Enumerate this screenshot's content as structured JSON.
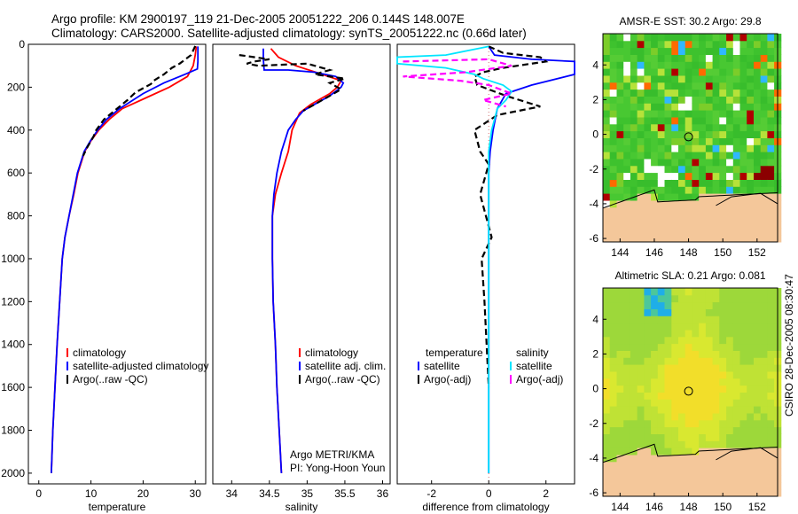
{
  "header": {
    "line1": "Argo profile: KM 2900197_119 21-Dec-2005 20051222_206 0.144S 148.007E",
    "line2": "Climatology: CARS2000. Satellite-adjusted climatology: synTS_20051222.nc (0.66d later)"
  },
  "stamp": "CSIRO 28-Dec-2005 08:30:47",
  "colors": {
    "climatology": "#ff0000",
    "satellite": "#0000ff",
    "argo": "#000000",
    "salinity_satellite": "#00e5ff",
    "salinity_argo": "#ff00ff"
  },
  "chart_data": [
    {
      "type": "line",
      "panel": "temperature",
      "xlabel": "temperature",
      "ylabel": "",
      "xlim": [
        -2,
        32
      ],
      "ylim": [
        2050,
        0
      ],
      "xticks": [
        "0",
        "10",
        "20",
        "30"
      ],
      "xtick_values": [
        0,
        10,
        20,
        30
      ],
      "yticks": [
        "0",
        "200",
        "400",
        "600",
        "800",
        "1000",
        "1200",
        "1400",
        "1600",
        "1800",
        "2000"
      ],
      "ytick_values": [
        0,
        200,
        400,
        600,
        800,
        1000,
        1200,
        1400,
        1600,
        1800,
        2000
      ],
      "legend": [
        "climatology",
        "satellite-adjusted climatology",
        "Argo(..raw -QC)"
      ],
      "series": [
        {
          "name": "climatology",
          "color": "red",
          "dash": false,
          "points": [
            [
              30.2,
              10
            ],
            [
              30.0,
              50
            ],
            [
              29.6,
              100
            ],
            [
              28.5,
              150
            ],
            [
              25,
              200
            ],
            [
              20.5,
              250
            ],
            [
              16,
              300
            ],
            [
              13.5,
              350
            ],
            [
              11.5,
              400
            ],
            [
              10,
              450
            ],
            [
              8.8,
              500
            ],
            [
              7.5,
              600
            ],
            [
              6.7,
              700
            ],
            [
              5.8,
              800
            ],
            [
              5.0,
              900
            ],
            [
              4.5,
              1000
            ],
            [
              4.0,
              1200
            ],
            [
              3.5,
              1400
            ],
            [
              3.1,
              1600
            ],
            [
              2.7,
              1800
            ],
            [
              2.4,
              2000
            ]
          ]
        },
        {
          "name": "satellite-adjusted climatology",
          "color": "blue",
          "dash": false,
          "points": [
            [
              30.5,
              10
            ],
            [
              30.5,
              50
            ],
            [
              30.5,
              80
            ],
            [
              30.4,
              115
            ],
            [
              28,
              140
            ],
            [
              24,
              180
            ],
            [
              20,
              230
            ],
            [
              15.5,
              300
            ],
            [
              13,
              350
            ],
            [
              11.3,
              400
            ],
            [
              9.9,
              450
            ],
            [
              8.7,
              500
            ],
            [
              7.4,
              600
            ],
            [
              6.6,
              700
            ],
            [
              5.8,
              800
            ],
            [
              5.0,
              900
            ],
            [
              4.5,
              1000
            ],
            [
              4.0,
              1200
            ],
            [
              3.5,
              1400
            ],
            [
              3.1,
              1600
            ],
            [
              2.7,
              1800
            ],
            [
              2.4,
              2000
            ]
          ]
        },
        {
          "name": "Argo(..raw -QC)",
          "color": "black",
          "dash": true,
          "points": [
            [
              30.0,
              8
            ],
            [
              29.2,
              50
            ],
            [
              27,
              90
            ],
            [
              25.5,
              110
            ],
            [
              24,
              140
            ],
            [
              22,
              170
            ],
            [
              21.5,
              185
            ],
            [
              18.5,
              225
            ],
            [
              17,
              260
            ],
            [
              15,
              300
            ],
            [
              12.5,
              350
            ],
            [
              11,
              400
            ],
            [
              10.5,
              430
            ],
            [
              9.3,
              480
            ],
            [
              8.5,
              520
            ]
          ]
        }
      ]
    },
    {
      "type": "line",
      "panel": "salinity",
      "xlabel": "salinity",
      "xlim": [
        33.75,
        36.1
      ],
      "ylim": [
        2050,
        0
      ],
      "xticks": [
        "34",
        "34.5",
        "35",
        "35.5",
        "36"
      ],
      "xtick_values": [
        34,
        34.5,
        35,
        35.5,
        36
      ],
      "legend": [
        "climatology",
        "satellite adj. clim.",
        "Argo(..raw -QC)"
      ],
      "annotation": [
        "Argo METRI/KMA",
        "PI: Yong-Hoon Youn"
      ],
      "series": [
        {
          "name": "climatology",
          "color": "red",
          "dash": false,
          "points": [
            [
              34.52,
              20
            ],
            [
              34.62,
              60
            ],
            [
              34.85,
              100
            ],
            [
              35.2,
              140
            ],
            [
              35.45,
              170
            ],
            [
              35.4,
              200
            ],
            [
              35.3,
              230
            ],
            [
              35.05,
              280
            ],
            [
              34.9,
              320
            ],
            [
              34.8,
              400
            ],
            [
              34.75,
              500
            ],
            [
              34.66,
              600
            ],
            [
              34.58,
              700
            ],
            [
              34.54,
              800
            ],
            [
              34.54,
              1000
            ],
            [
              34.55,
              1200
            ],
            [
              34.58,
              1400
            ],
            [
              34.6,
              1600
            ],
            [
              34.63,
              1800
            ],
            [
              34.66,
              2000
            ]
          ]
        },
        {
          "name": "satellite adj. clim.",
          "color": "blue",
          "dash": false,
          "points": [
            [
              34.42,
              20
            ],
            [
              34.42,
              70
            ],
            [
              34.43,
              120
            ],
            [
              34.75,
              120
            ],
            [
              35.1,
              130
            ],
            [
              35.38,
              150
            ],
            [
              35.48,
              180
            ],
            [
              35.45,
              200
            ],
            [
              35.3,
              240
            ],
            [
              35.1,
              280
            ],
            [
              34.95,
              310
            ],
            [
              34.85,
              350
            ],
            [
              34.75,
              400
            ],
            [
              34.66,
              500
            ],
            [
              34.6,
              600
            ],
            [
              34.56,
              700
            ],
            [
              34.54,
              800
            ],
            [
              34.54,
              1000
            ],
            [
              34.55,
              1200
            ],
            [
              34.58,
              1400
            ],
            [
              34.6,
              1600
            ],
            [
              34.63,
              1800
            ],
            [
              34.66,
              2000
            ]
          ]
        },
        {
          "name": "Argo(..raw -QC)",
          "color": "black",
          "dash": true,
          "points": [
            [
              34.1,
              50
            ],
            [
              34.3,
              60
            ],
            [
              34.5,
              70
            ],
            [
              34.3,
              80
            ],
            [
              34.2,
              90
            ],
            [
              34.35,
              100
            ],
            [
              35.0,
              90
            ],
            [
              35.3,
              120
            ],
            [
              35.1,
              140
            ],
            [
              35.5,
              160
            ],
            [
              35.3,
              180
            ],
            [
              35.45,
              210
            ],
            [
              35.25,
              250
            ],
            [
              35.1,
              280
            ],
            [
              34.95,
              310
            ]
          ]
        }
      ]
    },
    {
      "type": "line",
      "panel": "difference",
      "xlabel": "difference from climatology",
      "xlim": [
        -3.2,
        3.0
      ],
      "ylim": [
        2050,
        0
      ],
      "xticks": [
        "-2",
        "0",
        "2"
      ],
      "xtick_values": [
        -2,
        0,
        2
      ],
      "legend_headers": [
        "temperature",
        "salinity"
      ],
      "legend": [
        "satellite",
        "Argo(-adj)",
        "satellite",
        "Argo(-adj)"
      ],
      "series": [
        {
          "name": "temperature satellite",
          "color": "blue",
          "dash": false,
          "points": [
            [
              0.0,
              10
            ],
            [
              0.2,
              50
            ],
            [
              1.5,
              70
            ],
            [
              3.0,
              80
            ],
            [
              3.0,
              140
            ],
            [
              1.5,
              190
            ],
            [
              0.6,
              230
            ],
            [
              0.3,
              300
            ],
            [
              0.15,
              400
            ],
            [
              0.05,
              500
            ],
            [
              0.0,
              600
            ],
            [
              0.0,
              1000
            ],
            [
              0.0,
              1600
            ],
            [
              0.0,
              2000
            ]
          ]
        },
        {
          "name": "temperature Argo(-adj)",
          "color": "black",
          "dash": true,
          "points": [
            [
              0.0,
              10
            ],
            [
              0.5,
              40
            ],
            [
              1.8,
              60
            ],
            [
              2.0,
              80
            ],
            [
              0.5,
              110
            ],
            [
              -0.2,
              130
            ],
            [
              -0.5,
              150
            ],
            [
              -0.4,
              190
            ],
            [
              0.6,
              240
            ],
            [
              1.8,
              290
            ],
            [
              0.3,
              330
            ],
            [
              -0.5,
              400
            ],
            [
              -0.3,
              500
            ],
            [
              0.0,
              560
            ],
            [
              -0.3,
              700
            ],
            [
              0.1,
              900
            ],
            [
              -0.25,
              1000
            ],
            [
              -0.15,
              1200
            ],
            [
              0.0,
              1600
            ]
          ]
        },
        {
          "name": "salinity satellite",
          "color": "cyan",
          "dash": false,
          "points": [
            [
              0.0,
              10
            ],
            [
              -1.5,
              50
            ],
            [
              -3.2,
              60
            ],
            [
              -3.2,
              90
            ],
            [
              -1.5,
              110
            ],
            [
              -0.5,
              140
            ],
            [
              -0.2,
              160
            ],
            [
              0.5,
              190
            ],
            [
              0.8,
              220
            ],
            [
              0.6,
              260
            ],
            [
              0.3,
              300
            ],
            [
              0.1,
              400
            ],
            [
              0.0,
              500
            ],
            [
              0.0,
              1000
            ],
            [
              0.0,
              2000
            ]
          ]
        },
        {
          "name": "salinity Argo(-adj)",
          "color": "magenta",
          "dash": true,
          "points": [
            [
              -3.0,
              80
            ],
            [
              0.0,
              70
            ],
            [
              0.8,
              100
            ],
            [
              -0.8,
              130
            ],
            [
              -3.0,
              150
            ],
            [
              -1.0,
              170
            ],
            [
              0.0,
              190
            ],
            [
              0.8,
              230
            ],
            [
              -0.2,
              260
            ],
            [
              0.6,
              290
            ]
          ]
        }
      ]
    },
    {
      "type": "heatmap",
      "panel": "sst_map",
      "title": "AMSR-E SST: 30.2 Argo: 29.8",
      "xlim": [
        143,
        153.2
      ],
      "ylim": [
        -6.2,
        5.8
      ],
      "xticks": [
        "144",
        "146",
        "148",
        "150",
        "152"
      ],
      "xtick_values": [
        144,
        146,
        148,
        150,
        152
      ],
      "yticks": [
        "4",
        "2",
        "0",
        "-2",
        "-4",
        "-6"
      ],
      "ytick_values": [
        4,
        2,
        0,
        -2,
        -4,
        -6
      ],
      "marker": {
        "lon": 148.0,
        "lat": -0.144
      }
    },
    {
      "type": "heatmap",
      "panel": "sla_map",
      "title": "Altimetric SLA: 0.21 Argo: 0.081",
      "xlim": [
        143,
        153.2
      ],
      "ylim": [
        -6.2,
        5.8
      ],
      "xticks": [
        "144",
        "146",
        "148",
        "150",
        "152"
      ],
      "xtick_values": [
        144,
        146,
        148,
        150,
        152
      ],
      "yticks": [
        "4",
        "2",
        "0",
        "-2",
        "-4",
        "-6"
      ],
      "ytick_values": [
        4,
        2,
        0,
        -2,
        -4,
        -6
      ],
      "marker": {
        "lon": 148.0,
        "lat": -0.144
      }
    }
  ]
}
